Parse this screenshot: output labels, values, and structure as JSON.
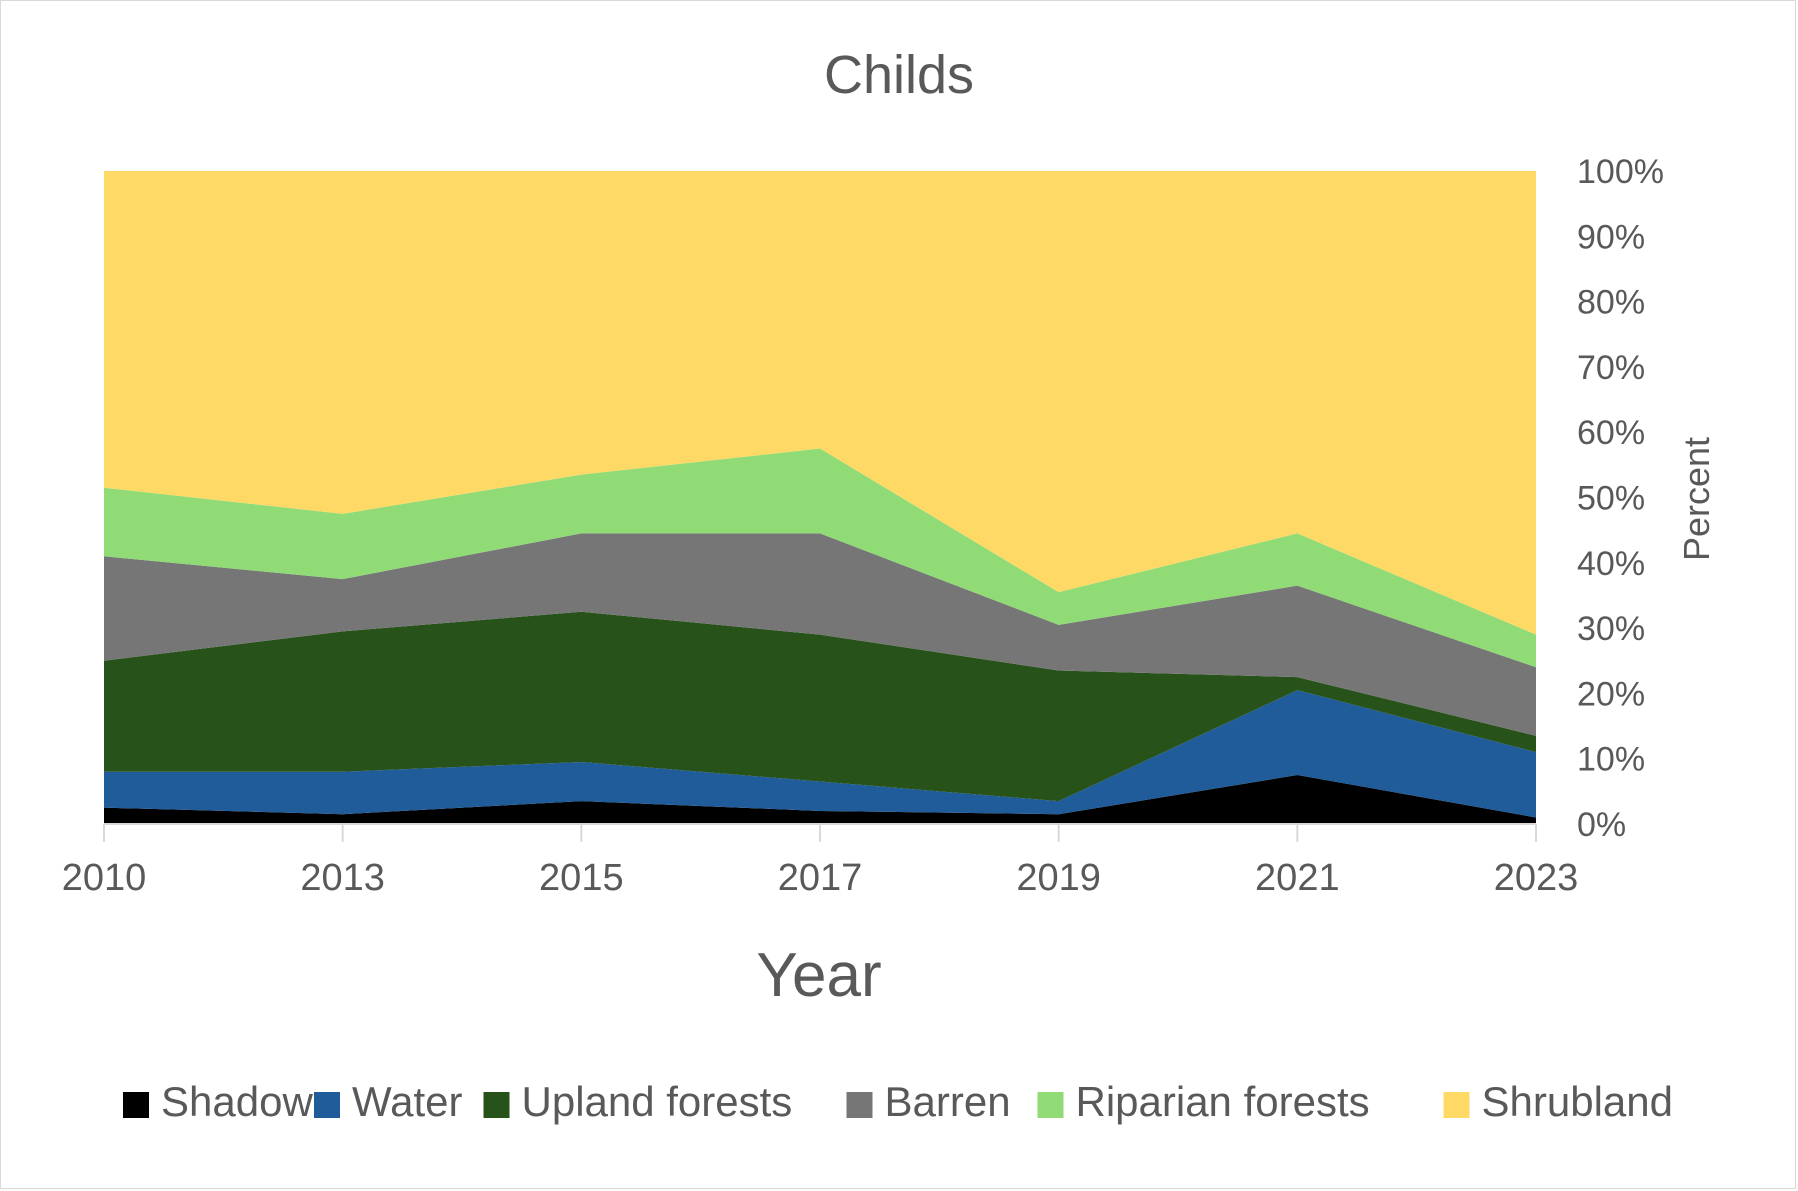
{
  "chart_data": {
    "type": "area",
    "stacked": true,
    "percent": true,
    "title": "Childs",
    "xlabel": "Year",
    "ylabel": "Percent",
    "categories": [
      "2010",
      "2013",
      "2015",
      "2017",
      "2019",
      "2021",
      "2023"
    ],
    "y_ticks": [
      "0%",
      "10%",
      "20%",
      "30%",
      "40%",
      "50%",
      "60%",
      "70%",
      "80%",
      "90%",
      "100%"
    ],
    "ylim": [
      0,
      100
    ],
    "y_axis_side": "right",
    "legend_position": "bottom",
    "grid": false,
    "series": [
      {
        "name": "Shadow",
        "color": "#000000",
        "values": [
          2.5,
          1.5,
          3.5,
          2.0,
          1.5,
          7.5,
          1.0
        ]
      },
      {
        "name": "Water",
        "color": "#1f5c99",
        "values": [
          5.5,
          6.5,
          6.0,
          4.5,
          2.0,
          13.0,
          10.0
        ]
      },
      {
        "name": "Upland forests",
        "color": "#27521a",
        "values": [
          17.0,
          21.5,
          23.0,
          22.5,
          20.0,
          2.0,
          2.5
        ]
      },
      {
        "name": "Barren",
        "color": "#767676",
        "values": [
          16.0,
          8.0,
          12.0,
          15.5,
          7.0,
          14.0,
          10.5
        ]
      },
      {
        "name": "Riparian forests",
        "color": "#90db76",
        "values": [
          10.5,
          10.0,
          9.0,
          13.0,
          5.0,
          8.0,
          5.0
        ]
      },
      {
        "name": "Shrubland",
        "color": "#ffd966",
        "values": [
          48.5,
          52.5,
          46.5,
          42.5,
          64.5,
          55.5,
          71.0
        ]
      }
    ]
  }
}
